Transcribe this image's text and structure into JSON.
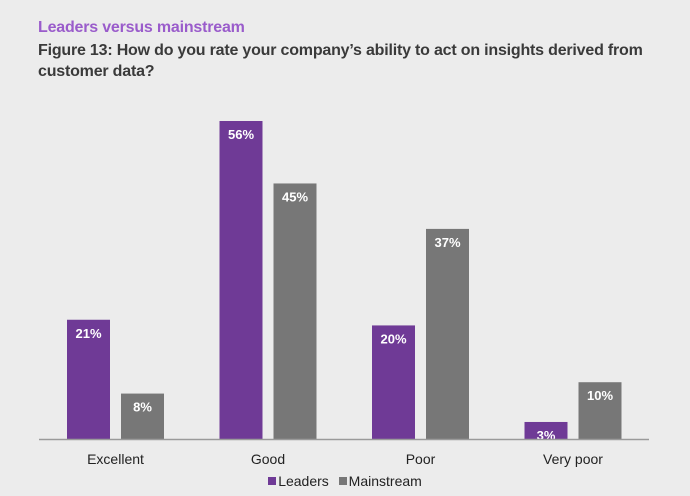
{
  "header": {
    "subtitle": "Leaders versus mainstream",
    "title": "Figure 13: How do you rate your company’s ability to act on insights derived from customer data?"
  },
  "colors": {
    "leaders": "#6f3a96",
    "mainstream": "#777777",
    "subtitle": "#9a5ccb",
    "background": "#ececec"
  },
  "chart_data": {
    "type": "bar",
    "title": "Figure 13: How do you rate your company’s ability to act on insights derived from customer data?",
    "subtitle": "Leaders versus mainstream",
    "xlabel": "",
    "ylabel": "",
    "ylim": [
      0,
      56
    ],
    "grid": false,
    "legend": "bottom-center",
    "categories": [
      "Excellent",
      "Good",
      "Poor",
      "Very poor"
    ],
    "series": [
      {
        "name": "Leaders",
        "values": [
          21,
          56,
          20,
          3
        ],
        "labels": [
          "21%",
          "56%",
          "20%",
          "3%"
        ]
      },
      {
        "name": "Mainstream",
        "values": [
          8,
          45,
          37,
          10
        ],
        "labels": [
          "8%",
          "45%",
          "37%",
          "10%"
        ]
      }
    ]
  }
}
